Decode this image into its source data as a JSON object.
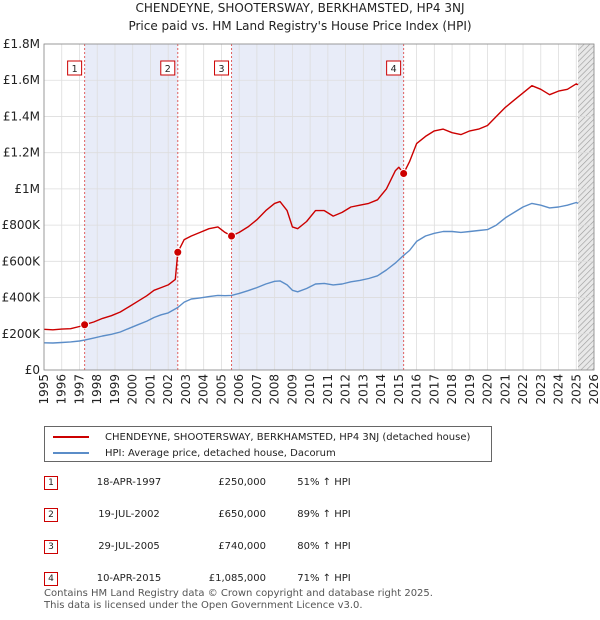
{
  "chart_data": {
    "type": "line",
    "title": "CHENDEYNE, SHOOTERSWAY, BERKHAMSTED, HP4 3NJ",
    "subtitle": "Price paid vs. HM Land Registry's House Price Index (HPI)",
    "xlim": [
      1995,
      2026
    ],
    "ylim": [
      0,
      1800000
    ],
    "x_ticks": [
      "1995",
      "1996",
      "1997",
      "1998",
      "1999",
      "2000",
      "2001",
      "2002",
      "2003",
      "2004",
      "2005",
      "2006",
      "2007",
      "2008",
      "2009",
      "2010",
      "2011",
      "2012",
      "2013",
      "2014",
      "2015",
      "2016",
      "2017",
      "2018",
      "2019",
      "2020",
      "2021",
      "2022",
      "2023",
      "2024",
      "2025",
      "2026"
    ],
    "y_ticks": [
      {
        "value": 0,
        "label": "£0"
      },
      {
        "value": 200000,
        "label": "£200K"
      },
      {
        "value": 400000,
        "label": "£400K"
      },
      {
        "value": 600000,
        "label": "£600K"
      },
      {
        "value": 800000,
        "label": "£800K"
      },
      {
        "value": 1000000,
        "label": "£1M"
      },
      {
        "value": 1200000,
        "label": "£1.2M"
      },
      {
        "value": 1400000,
        "label": "£1.4M"
      },
      {
        "value": 1600000,
        "label": "£1.6M"
      },
      {
        "value": 1800000,
        "label": "£1.8M"
      }
    ],
    "grid": true,
    "shaded_spans": [
      [
        1997.29,
        2002.54
      ],
      [
        2005.57,
        2015.27
      ]
    ],
    "future_hatch_from": 2025.1,
    "series": [
      {
        "name": "CHENDEYNE, SHOOTERSWAY, BERKHAMSTED, HP4 3NJ (detached house)",
        "color": "#cc0000",
        "points": [
          [
            1995.0,
            225000
          ],
          [
            1995.5,
            222000
          ],
          [
            1996.0,
            226000
          ],
          [
            1996.5,
            228000
          ],
          [
            1997.0,
            240000
          ],
          [
            1997.29,
            250000
          ],
          [
            1997.8,
            265000
          ],
          [
            1998.3,
            285000
          ],
          [
            1998.8,
            300000
          ],
          [
            1999.3,
            320000
          ],
          [
            1999.8,
            350000
          ],
          [
            2000.3,
            380000
          ],
          [
            2000.8,
            410000
          ],
          [
            2001.2,
            440000
          ],
          [
            2001.6,
            455000
          ],
          [
            2002.0,
            470000
          ],
          [
            2002.4,
            500000
          ],
          [
            2002.54,
            650000
          ],
          [
            2002.9,
            720000
          ],
          [
            2003.3,
            740000
          ],
          [
            2003.8,
            760000
          ],
          [
            2004.3,
            780000
          ],
          [
            2004.8,
            790000
          ],
          [
            2005.2,
            760000
          ],
          [
            2005.57,
            740000
          ],
          [
            2006.0,
            760000
          ],
          [
            2006.5,
            790000
          ],
          [
            2007.0,
            830000
          ],
          [
            2007.5,
            880000
          ],
          [
            2008.0,
            920000
          ],
          [
            2008.3,
            930000
          ],
          [
            2008.7,
            880000
          ],
          [
            2009.0,
            790000
          ],
          [
            2009.3,
            780000
          ],
          [
            2009.8,
            820000
          ],
          [
            2010.3,
            880000
          ],
          [
            2010.8,
            880000
          ],
          [
            2011.3,
            850000
          ],
          [
            2011.8,
            870000
          ],
          [
            2012.3,
            900000
          ],
          [
            2012.8,
            910000
          ],
          [
            2013.3,
            920000
          ],
          [
            2013.8,
            940000
          ],
          [
            2014.3,
            1000000
          ],
          [
            2014.8,
            1100000
          ],
          [
            2015.0,
            1120000
          ],
          [
            2015.27,
            1085000
          ],
          [
            2015.6,
            1150000
          ],
          [
            2016.0,
            1250000
          ],
          [
            2016.5,
            1290000
          ],
          [
            2017.0,
            1320000
          ],
          [
            2017.5,
            1330000
          ],
          [
            2018.0,
            1310000
          ],
          [
            2018.5,
            1300000
          ],
          [
            2019.0,
            1320000
          ],
          [
            2019.5,
            1330000
          ],
          [
            2020.0,
            1350000
          ],
          [
            2020.5,
            1400000
          ],
          [
            2021.0,
            1450000
          ],
          [
            2021.5,
            1490000
          ],
          [
            2022.0,
            1530000
          ],
          [
            2022.5,
            1570000
          ],
          [
            2023.0,
            1550000
          ],
          [
            2023.5,
            1520000
          ],
          [
            2024.0,
            1540000
          ],
          [
            2024.5,
            1550000
          ],
          [
            2025.0,
            1580000
          ],
          [
            2025.1,
            1575000
          ]
        ]
      },
      {
        "name": "HPI: Average price, detached house, Dacorum",
        "color": "#5b8dc8",
        "points": [
          [
            1995.0,
            150000
          ],
          [
            1995.5,
            149000
          ],
          [
            1996.0,
            152000
          ],
          [
            1996.5,
            155000
          ],
          [
            1997.0,
            160000
          ],
          [
            1997.29,
            165000
          ],
          [
            1997.8,
            176000
          ],
          [
            1998.3,
            188000
          ],
          [
            1998.8,
            197000
          ],
          [
            1999.3,
            210000
          ],
          [
            1999.8,
            230000
          ],
          [
            2000.3,
            250000
          ],
          [
            2000.8,
            270000
          ],
          [
            2001.2,
            290000
          ],
          [
            2001.6,
            305000
          ],
          [
            2002.0,
            315000
          ],
          [
            2002.54,
            345000
          ],
          [
            2002.9,
            375000
          ],
          [
            2003.3,
            392000
          ],
          [
            2003.8,
            398000
          ],
          [
            2004.3,
            405000
          ],
          [
            2004.8,
            412000
          ],
          [
            2005.2,
            410000
          ],
          [
            2005.57,
            412000
          ],
          [
            2006.0,
            423000
          ],
          [
            2006.5,
            438000
          ],
          [
            2007.0,
            455000
          ],
          [
            2007.5,
            475000
          ],
          [
            2008.0,
            490000
          ],
          [
            2008.3,
            492000
          ],
          [
            2008.7,
            470000
          ],
          [
            2009.0,
            440000
          ],
          [
            2009.3,
            432000
          ],
          [
            2009.8,
            450000
          ],
          [
            2010.3,
            475000
          ],
          [
            2010.8,
            478000
          ],
          [
            2011.3,
            470000
          ],
          [
            2011.8,
            475000
          ],
          [
            2012.3,
            487000
          ],
          [
            2012.8,
            495000
          ],
          [
            2013.3,
            505000
          ],
          [
            2013.8,
            520000
          ],
          [
            2014.3,
            552000
          ],
          [
            2014.8,
            590000
          ],
          [
            2015.27,
            633000
          ],
          [
            2015.6,
            660000
          ],
          [
            2016.0,
            710000
          ],
          [
            2016.5,
            740000
          ],
          [
            2017.0,
            755000
          ],
          [
            2017.5,
            765000
          ],
          [
            2018.0,
            765000
          ],
          [
            2018.5,
            760000
          ],
          [
            2019.0,
            765000
          ],
          [
            2019.5,
            770000
          ],
          [
            2020.0,
            775000
          ],
          [
            2020.5,
            800000
          ],
          [
            2021.0,
            840000
          ],
          [
            2021.5,
            870000
          ],
          [
            2022.0,
            900000
          ],
          [
            2022.5,
            920000
          ],
          [
            2023.0,
            910000
          ],
          [
            2023.5,
            895000
          ],
          [
            2024.0,
            900000
          ],
          [
            2024.5,
            910000
          ],
          [
            2025.0,
            925000
          ],
          [
            2025.1,
            920000
          ]
        ]
      }
    ],
    "sales": [
      {
        "label": "1",
        "x": 1997.29,
        "value": 250000
      },
      {
        "label": "2",
        "x": 2002.54,
        "value": 650000
      },
      {
        "label": "3",
        "x": 2005.57,
        "value": 740000
      },
      {
        "label": "4",
        "x": 2015.27,
        "value": 1085000
      }
    ]
  },
  "legend": {
    "property_label": "CHENDEYNE, SHOOTERSWAY, BERKHAMSTED, HP4 3NJ (detached house)",
    "property_color": "#cc0000",
    "hpi_label": "HPI: Average price, detached house, Dacorum",
    "hpi_color": "#5b8dc8"
  },
  "transactions": [
    {
      "num": "1",
      "date": "18-APR-1997",
      "price": "£250,000",
      "hpi": "51% ↑ HPI"
    },
    {
      "num": "2",
      "date": "19-JUL-2002",
      "price": "£650,000",
      "hpi": "89% ↑ HPI"
    },
    {
      "num": "3",
      "date": "29-JUL-2005",
      "price": "£740,000",
      "hpi": "80% ↑ HPI"
    },
    {
      "num": "4",
      "date": "10-APR-2015",
      "price": "£1,085,000",
      "hpi": "71% ↑ HPI"
    }
  ],
  "footer": {
    "line1": "Contains HM Land Registry data © Crown copyright and database right 2025.",
    "line2": "This data is licensed under the Open Government Licence v3.0."
  }
}
